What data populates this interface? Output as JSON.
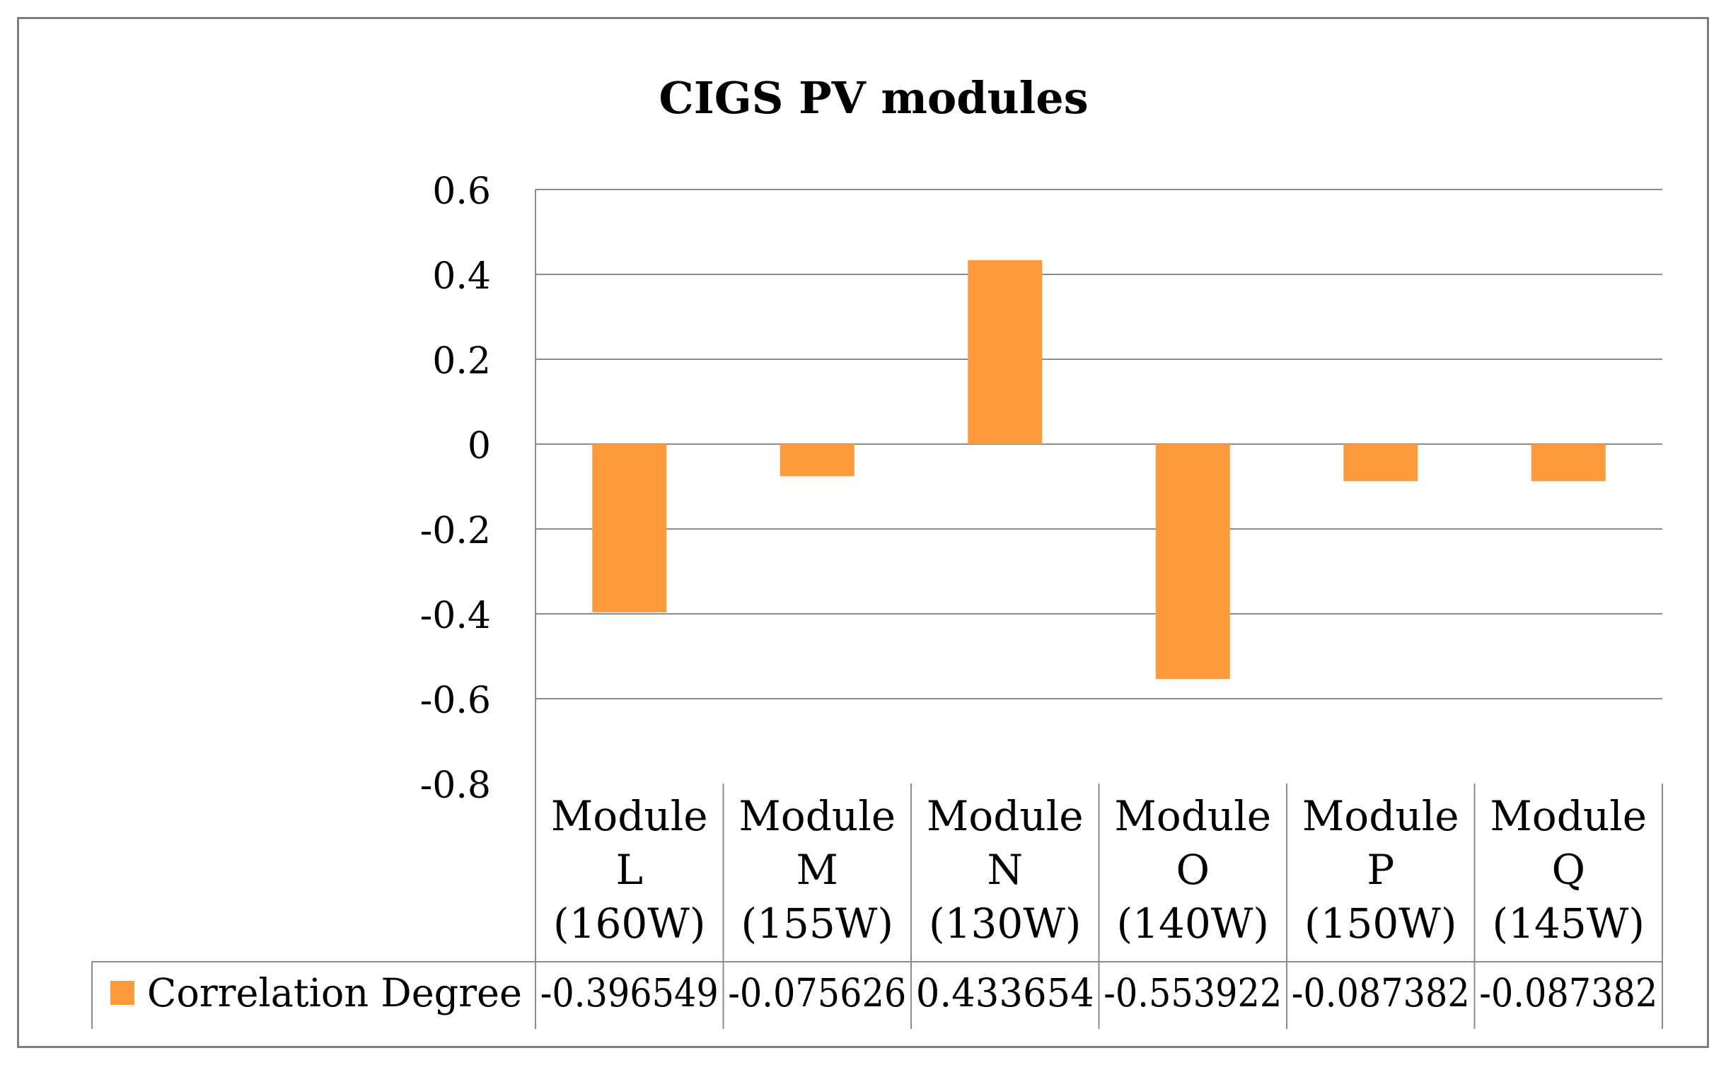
{
  "chart_data": {
    "type": "bar",
    "title": "CIGS PV modules",
    "categories": [
      [
        "Module",
        "L",
        "(160W)"
      ],
      [
        "Module",
        "M",
        "(155W)"
      ],
      [
        "Module",
        "N",
        "(130W)"
      ],
      [
        "Module",
        "O",
        "(140W)"
      ],
      [
        "Module",
        "P",
        "(150W)"
      ],
      [
        "Module",
        "Q",
        "(145W)"
      ]
    ],
    "series": [
      {
        "name": "Correlation Degree",
        "values": [
          -0.396549,
          -0.075626,
          0.433654,
          -0.553922,
          -0.087382,
          -0.087382
        ],
        "value_labels": [
          "-0.396549",
          "-0.075626",
          "0.433654",
          "-0.553922",
          "-0.087382",
          "-0.087382"
        ]
      }
    ],
    "ylim": [
      -0.8,
      0.6
    ],
    "yticks": [
      0.6,
      0.4,
      0.2,
      0,
      -0.2,
      -0.4,
      -0.6,
      -0.8
    ],
    "ytick_labels": [
      "0.6",
      "0.4",
      "0.2",
      "0",
      "-0.2",
      "-0.4",
      "-0.6",
      "-0.8"
    ],
    "xlabel": "",
    "ylabel": "",
    "grid": true,
    "legend": "data-table",
    "colors": {
      "bar": "#ff9a3c",
      "grid": "#8c8c8c",
      "frame": "#7f7f7f",
      "text": "#000000"
    }
  }
}
